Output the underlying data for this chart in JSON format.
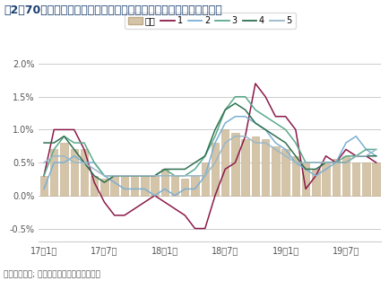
{
  "title": "图2：70个大中城市新建商品住宅销售价格环比变动情况，按城市线级",
  "footnote": "（国家统计局; 第一太平戴维斯市场研究部）",
  "legend_labels": [
    "全部",
    "1",
    "2",
    "3",
    "4",
    "5"
  ],
  "xtick_labels": [
    "17年1月",
    "17年7月",
    "18年1月",
    "18年7月",
    "19年1月",
    "19年7月"
  ],
  "xtick_pos": [
    0,
    6,
    12,
    18,
    24,
    30
  ],
  "ytick_vals": [
    -0.005,
    0.0,
    0.005,
    0.01,
    0.015,
    0.02
  ],
  "ytick_labels": [
    "-0.5%",
    "0.0%",
    "0.5%",
    "1.0%",
    "1.5%",
    "2.0%"
  ],
  "ylim": [
    -0.007,
    0.022
  ],
  "xlim_min": -0.5,
  "n_points": 34,
  "bar_color": "#d4c4a8",
  "bar_edge_color": "#c0aa88",
  "line1_color": "#8b1a4a",
  "line2_color": "#7bafd4",
  "line3_color": "#5aaa8c",
  "line4_color": "#2e7050",
  "line5_color": "#9ab8c8",
  "title_color": "#1a3f6f",
  "footnote_color": "#555555",
  "grid_color": "#cccccc",
  "bg_color": "#ffffff",
  "bar_data": [
    0.003,
    0.007,
    0.008,
    0.007,
    0.007,
    0.003,
    0.0025,
    0.003,
    0.003,
    0.003,
    0.003,
    0.003,
    0.004,
    0.003,
    0.0025,
    0.003,
    0.005,
    0.008,
    0.01,
    0.0095,
    0.0085,
    0.009,
    0.0085,
    0.0075,
    0.007,
    0.006,
    0.005,
    0.004,
    0.005,
    0.0055,
    0.006,
    0.005,
    0.005,
    0.005
  ],
  "line1_data": [
    0.003,
    0.01,
    0.01,
    0.01,
    0.007,
    0.002,
    -0.001,
    -0.003,
    -0.003,
    -0.002,
    -0.001,
    0.0,
    -0.001,
    -0.002,
    -0.003,
    -0.005,
    -0.005,
    0.0,
    0.004,
    0.005,
    0.009,
    0.017,
    0.015,
    0.012,
    0.012,
    0.01,
    0.001,
    0.003,
    0.006,
    0.005,
    0.007,
    0.006,
    0.006,
    0.005
  ],
  "line2_data": [
    0.001,
    0.005,
    0.005,
    0.006,
    0.005,
    0.005,
    0.003,
    0.002,
    0.001,
    0.001,
    0.001,
    0.0,
    0.001,
    0.0,
    0.001,
    0.001,
    0.003,
    0.008,
    0.011,
    0.012,
    0.012,
    0.011,
    0.01,
    0.008,
    0.007,
    0.005,
    0.004,
    0.003,
    0.004,
    0.005,
    0.008,
    0.009,
    0.007,
    0.006
  ],
  "line3_data": [
    0.003,
    0.007,
    0.009,
    0.008,
    0.008,
    0.005,
    0.003,
    0.003,
    0.003,
    0.003,
    0.003,
    0.003,
    0.004,
    0.003,
    0.003,
    0.004,
    0.006,
    0.009,
    0.013,
    0.015,
    0.015,
    0.013,
    0.012,
    0.011,
    0.01,
    0.008,
    0.005,
    0.005,
    0.005,
    0.005,
    0.006,
    0.006,
    0.007,
    0.007
  ],
  "line4_data": [
    0.008,
    0.008,
    0.009,
    0.007,
    0.005,
    0.003,
    0.002,
    0.003,
    0.003,
    0.003,
    0.003,
    0.003,
    0.004,
    0.004,
    0.004,
    0.005,
    0.006,
    0.01,
    0.013,
    0.014,
    0.013,
    0.011,
    0.01,
    0.009,
    0.008,
    0.006,
    0.004,
    0.004,
    0.005,
    0.005,
    0.005,
    0.006,
    0.006,
    0.006
  ],
  "line5_data": [
    0.005,
    0.006,
    0.006,
    0.005,
    0.005,
    0.004,
    0.003,
    0.003,
    0.003,
    0.003,
    0.003,
    0.003,
    0.003,
    0.003,
    0.003,
    0.003,
    0.003,
    0.005,
    0.008,
    0.009,
    0.009,
    0.008,
    0.008,
    0.007,
    0.006,
    0.005,
    0.005,
    0.005,
    0.005,
    0.005,
    0.005,
    0.006,
    0.006,
    0.007
  ]
}
